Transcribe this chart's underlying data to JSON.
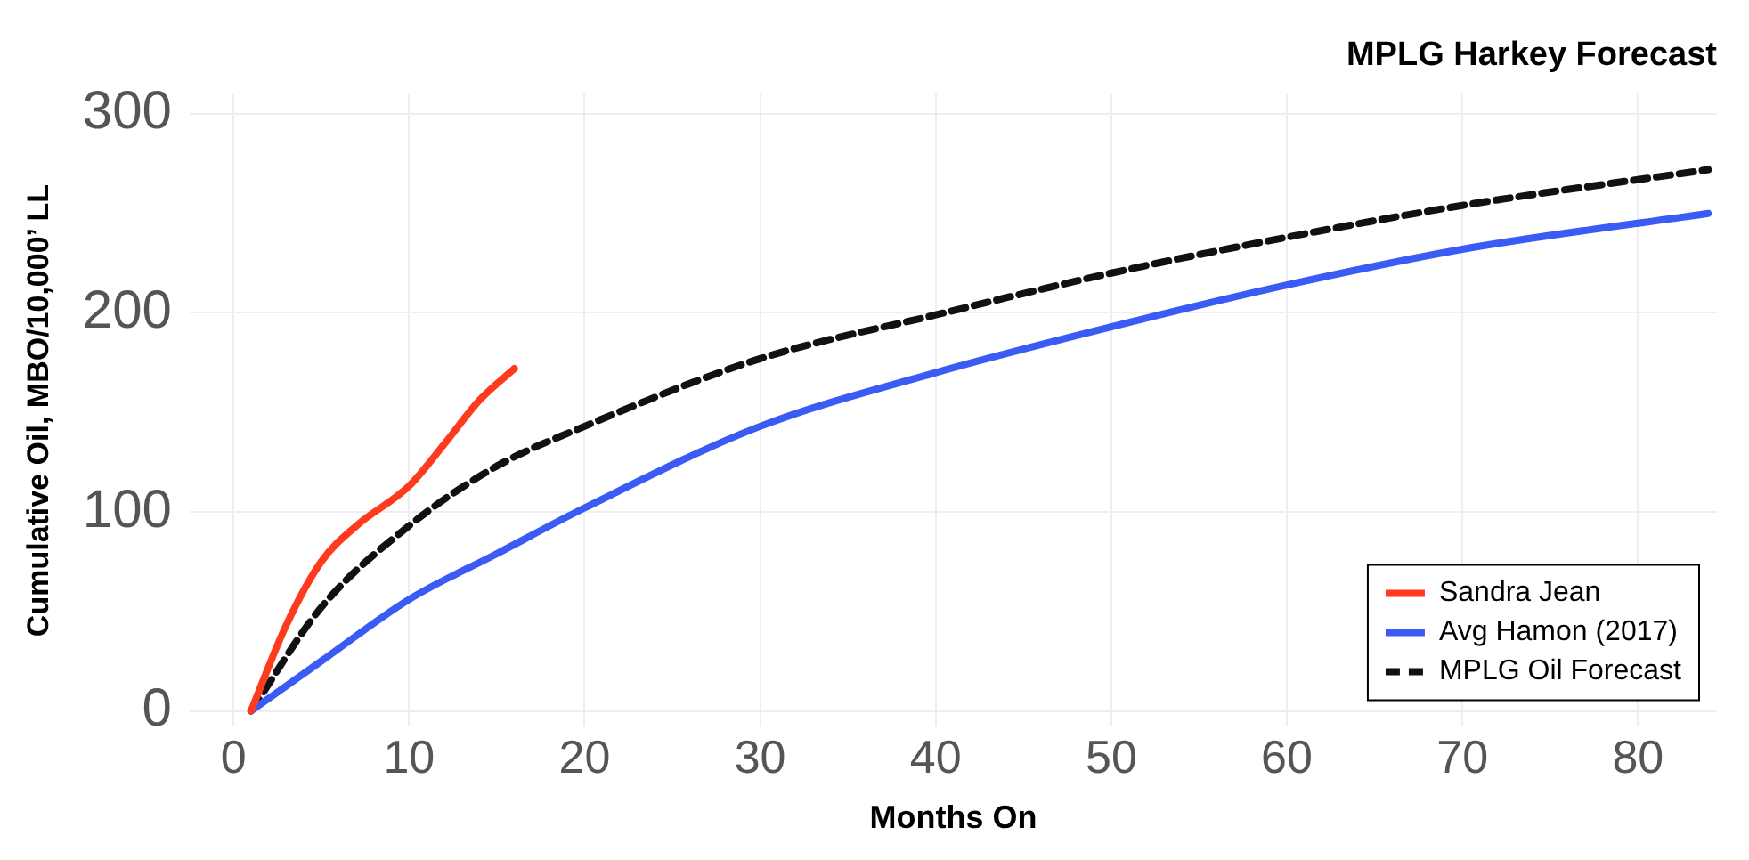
{
  "chart_data": {
    "type": "line",
    "title": "MPLG Harkey Forecast",
    "xlabel": "Months On",
    "ylabel": "Cumulative Oil, MBO/10,000’ LL",
    "xlim": [
      -2.5,
      84.5
    ],
    "xticks": [
      0,
      10,
      20,
      30,
      40,
      50,
      60,
      70,
      80
    ],
    "ylim": [
      -8,
      310
    ],
    "yticks": [
      0,
      100,
      200,
      300
    ],
    "grid": true,
    "legend": "bottom right",
    "marker": "none",
    "series": [
      {
        "name": "Sandra Jean",
        "color": "#ff3b1f",
        "line_style": "solid",
        "x": [
          1,
          3,
          5,
          7,
          10,
          12,
          14,
          16
        ],
        "values": [
          0,
          43,
          75,
          93,
          113,
          134,
          156,
          172
        ]
      },
      {
        "name": "Avg Hamon (2017)",
        "color": "#3b5bf5",
        "line_style": "solid",
        "x": [
          1,
          5,
          10,
          15,
          20,
          30,
          40,
          50,
          60,
          70,
          84
        ],
        "values": [
          0,
          25,
          56,
          79,
          102,
          143,
          170,
          193,
          214,
          232,
          250
        ]
      },
      {
        "name": "MPLG Oil Forecast",
        "color": "#111111",
        "line_style": "dashed",
        "x": [
          1,
          5,
          10,
          15,
          20,
          30,
          40,
          50,
          60,
          70,
          84
        ],
        "values": [
          0,
          52,
          93,
          123,
          143,
          177,
          199,
          220,
          238,
          254,
          272
        ]
      }
    ]
  }
}
